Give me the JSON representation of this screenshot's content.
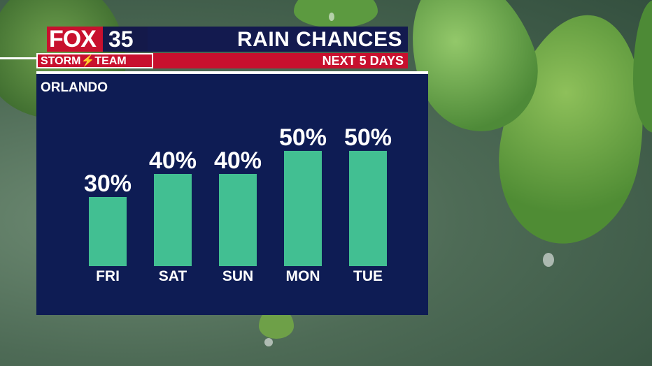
{
  "brand": {
    "logo_text": "FOX35",
    "storm_team": "STORM⚡TEAM"
  },
  "header": {
    "title": "RAIN CHANCES",
    "subtitle": "NEXT 5 DAYS"
  },
  "location": "ORLANDO",
  "colors": {
    "bar": "#42bf92",
    "panel": "#0e1c54",
    "accent": "#c8102e"
  },
  "chart_data": {
    "type": "bar",
    "title": "RAIN CHANCES",
    "subtitle": "NEXT 5 DAYS",
    "categories": [
      "FRI",
      "SAT",
      "SUN",
      "MON",
      "TUE"
    ],
    "values": [
      30,
      40,
      40,
      50,
      50
    ],
    "value_labels": [
      "30%",
      "40%",
      "40%",
      "50%",
      "50%"
    ],
    "ylim": [
      0,
      60
    ],
    "grid": false
  }
}
